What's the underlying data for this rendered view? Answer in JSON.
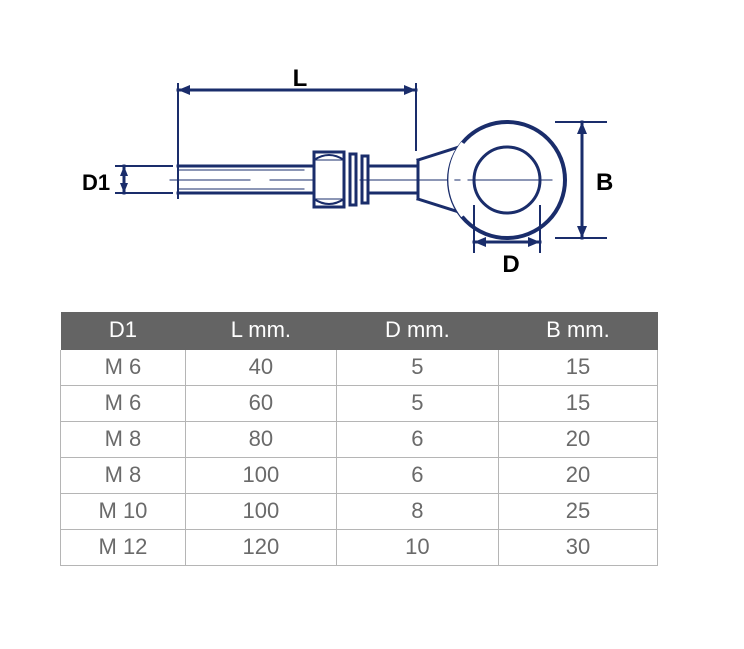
{
  "diagram": {
    "labels": {
      "L": "L",
      "D1": "D1",
      "B": "B",
      "D": "D"
    },
    "stroke": "#1a2d6b",
    "label_color": "#000000",
    "label_fontsize": 22,
    "label_fontweight": "600",
    "background": "#ffffff"
  },
  "table": {
    "columns": [
      "D1",
      "L mm.",
      "D mm.",
      "B mm."
    ],
    "rows": [
      [
        "M 6",
        "40",
        "5",
        "15"
      ],
      [
        "M 6",
        "60",
        "5",
        "15"
      ],
      [
        "M 8",
        "80",
        "6",
        "20"
      ],
      [
        "M 8",
        "100",
        "6",
        "20"
      ],
      [
        "M 10",
        "100",
        "8",
        "25"
      ],
      [
        "M 12",
        "120",
        "10",
        "30"
      ]
    ],
    "header_bg": "#646464",
    "header_fg": "#ffffff",
    "cell_fg": "#6a6a6a",
    "border_color": "#b5b5b5",
    "fontsize": 22,
    "col_widths_pct": [
      25,
      25,
      25,
      25
    ]
  }
}
